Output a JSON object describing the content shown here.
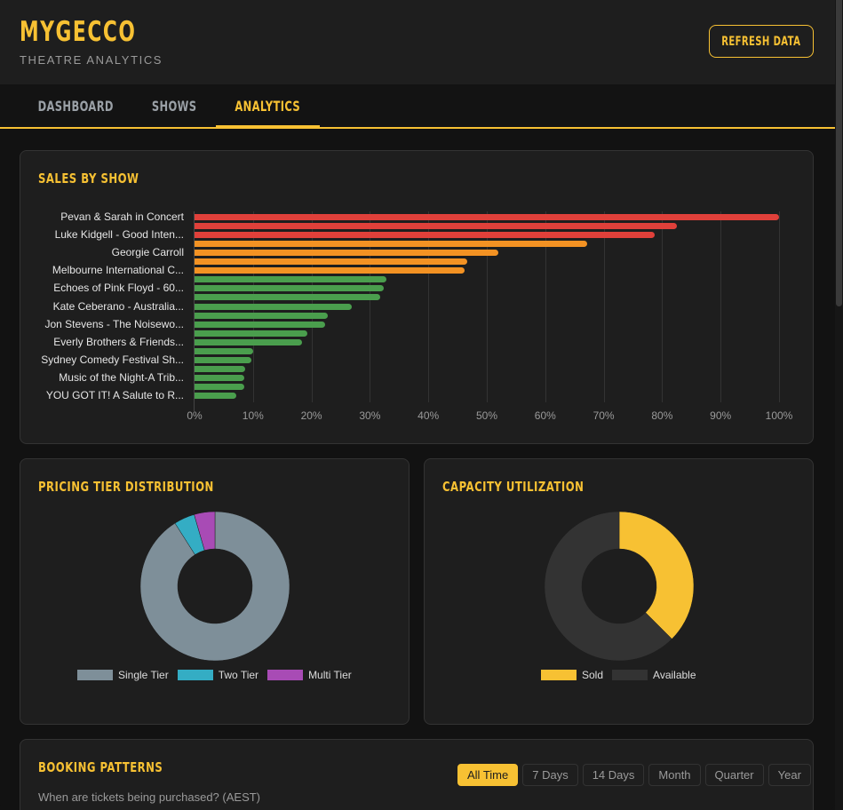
{
  "header": {
    "brand_title": "MYGECCO",
    "brand_subtitle": "THEATRE ANALYTICS",
    "refresh_label": "REFRESH DATA"
  },
  "nav": {
    "tabs": [
      {
        "label": "DASHBOARD",
        "active": false
      },
      {
        "label": "SHOWS",
        "active": false
      },
      {
        "label": "ANALYTICS",
        "active": true
      }
    ]
  },
  "colors": {
    "accent": "#f7c133",
    "high": "#e0403a",
    "mid": "#f39223",
    "low": "#4a9e4d",
    "single_tier": "#7e8f99",
    "two_tier": "#34adc4",
    "multi_tier": "#a84bb5",
    "available": "#333333"
  },
  "sales_by_show": {
    "title": "SALES BY SHOW",
    "visible_labels": [
      "Pevan & Sarah in Concert",
      "Luke Kidgell - Good Inten...",
      "Georgie Carroll",
      "Melbourne International C...",
      "Echoes of Pink Floyd - 60...",
      "Kate Ceberano - Australia...",
      "Jon Stevens - The Noisewo...",
      "Everly Brothers & Friends...",
      "Sydney Comedy Festival Sh...",
      "Music of the Night-A Trib...",
      "YOU GOT IT! A Salute to R..."
    ],
    "ticks": [
      "0%",
      "10%",
      "20%",
      "30%",
      "40%",
      "50%",
      "60%",
      "70%",
      "80%",
      "90%",
      "100%"
    ]
  },
  "pricing_tier": {
    "title": "PRICING TIER DISTRIBUTION",
    "legend": [
      "Single Tier",
      "Two Tier",
      "Multi Tier"
    ]
  },
  "capacity": {
    "title": "CAPACITY UTILIZATION",
    "legend": [
      "Sold",
      "Available"
    ]
  },
  "booking_patterns": {
    "title": "BOOKING PATTERNS",
    "subtitle": "When are tickets being purchased? (AEST)",
    "filters": [
      {
        "label": "All Time",
        "active": true
      },
      {
        "label": "7 Days",
        "active": false
      },
      {
        "label": "14 Days",
        "active": false
      },
      {
        "label": "Month",
        "active": false
      },
      {
        "label": "Quarter",
        "active": false
      },
      {
        "label": "Year",
        "active": false
      }
    ]
  },
  "chart_data": [
    {
      "type": "bar",
      "orientation": "horizontal",
      "title": "SALES BY SHOW",
      "xlabel": "",
      "ylabel": "",
      "xlim": [
        0,
        100
      ],
      "x_tick_labels": [
        "0%",
        "10%",
        "20%",
        "30%",
        "40%",
        "50%",
        "60%",
        "70%",
        "80%",
        "90%",
        "100%"
      ],
      "grid": true,
      "categories": [
        "Pevan & Sarah in Concert",
        "",
        "Luke Kidgell - Good Inten...",
        "",
        "Georgie Carroll",
        "",
        "Melbourne International C...",
        "",
        "Echoes of Pink Floyd - 60...",
        "",
        "Kate Ceberano - Australia...",
        "",
        "Jon Stevens - The Noisewo...",
        "",
        "Everly Brothers & Friends...",
        "",
        "Sydney Comedy Festival Sh...",
        "",
        "Music of the Night-A Trib...",
        "",
        "YOU GOT IT! A Salute to R..."
      ],
      "values": [
        100,
        82.5,
        78.7,
        67.2,
        52.0,
        46.7,
        46.2,
        32.9,
        32.4,
        31.8,
        26.9,
        22.8,
        22.3,
        19.3,
        18.4,
        10.1,
        9.8,
        8.7,
        8.5,
        8.5,
        7.2
      ],
      "bar_colors": [
        "high",
        "high",
        "high",
        "mid",
        "mid",
        "mid",
        "mid",
        "low",
        "low",
        "low",
        "low",
        "low",
        "low",
        "low",
        "low",
        "low",
        "low",
        "low",
        "low",
        "low",
        "low"
      ]
    },
    {
      "type": "pie",
      "variant": "doughnut",
      "title": "PRICING TIER DISTRIBUTION",
      "labels": [
        "Single Tier",
        "Two Tier",
        "Multi Tier"
      ],
      "values": [
        91,
        4.5,
        4.5
      ],
      "legend_position": "bottom"
    },
    {
      "type": "pie",
      "variant": "doughnut",
      "title": "CAPACITY UTILIZATION",
      "labels": [
        "Sold",
        "Available"
      ],
      "values": [
        37.5,
        62.5
      ],
      "legend_position": "bottom"
    }
  ]
}
